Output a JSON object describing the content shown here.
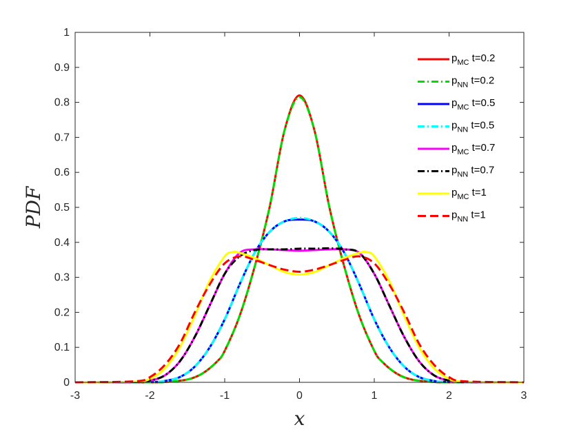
{
  "chart_data": {
    "type": "line",
    "xlabel": "x",
    "ylabel": "PDF",
    "xlim": [
      -3,
      3
    ],
    "ylim": [
      0,
      1
    ],
    "xticks": [
      "-3",
      "-2",
      "-1",
      "0",
      "1",
      "2",
      "3"
    ],
    "yticks": [
      "0",
      "0.1",
      "0.2",
      "0.3",
      "0.4",
      "0.5",
      "0.6",
      "0.7",
      "0.8",
      "0.9",
      "1"
    ],
    "grid": false,
    "legend_position": "top-right",
    "series": [
      {
        "name_main": "p",
        "name_sub": "MC",
        "name_tail": " t=0.2",
        "color": "#ff0000",
        "style": "solid",
        "x": [
          -3,
          -2,
          -1.8,
          -1.5,
          -1.3,
          -1.1,
          -1,
          -0.8,
          -0.6,
          -0.4,
          -0.2,
          0,
          0.2,
          0.4,
          0.6,
          0.8,
          1,
          1.1,
          1.3,
          1.5,
          1.8,
          2,
          3
        ],
        "y": [
          0,
          0,
          0.001,
          0.008,
          0.025,
          0.06,
          0.09,
          0.19,
          0.33,
          0.5,
          0.72,
          0.82,
          0.72,
          0.5,
          0.33,
          0.19,
          0.09,
          0.06,
          0.025,
          0.008,
          0.001,
          0,
          0
        ]
      },
      {
        "name_main": "p",
        "name_sub": "NN",
        "name_tail": " t=0.2",
        "color": "#00dd00",
        "style": "dashdot",
        "x": [
          -3,
          -2,
          -1.8,
          -1.5,
          -1.3,
          -1.1,
          -1,
          -0.8,
          -0.6,
          -0.4,
          -0.2,
          0,
          0.2,
          0.4,
          0.6,
          0.8,
          1,
          1.1,
          1.3,
          1.5,
          1.8,
          2,
          3
        ],
        "y": [
          0,
          0,
          0.001,
          0.008,
          0.025,
          0.06,
          0.09,
          0.19,
          0.33,
          0.5,
          0.72,
          0.815,
          0.72,
          0.5,
          0.33,
          0.19,
          0.09,
          0.06,
          0.025,
          0.008,
          0.001,
          0,
          0
        ]
      },
      {
        "name_main": "p",
        "name_sub": "MC",
        "name_tail": " t=0.5",
        "color": "#0000ff",
        "style": "solid",
        "x": [
          -3,
          -2,
          -1.8,
          -1.6,
          -1.4,
          -1.2,
          -1,
          -0.8,
          -0.6,
          -0.4,
          -0.2,
          0,
          0.2,
          0.4,
          0.6,
          0.8,
          1,
          1.2,
          1.4,
          1.6,
          1.8,
          2,
          3
        ],
        "y": [
          0,
          0.001,
          0.004,
          0.015,
          0.045,
          0.1,
          0.18,
          0.28,
          0.37,
          0.43,
          0.46,
          0.465,
          0.46,
          0.43,
          0.37,
          0.28,
          0.18,
          0.1,
          0.045,
          0.015,
          0.004,
          0.001,
          0
        ]
      },
      {
        "name_main": "p",
        "name_sub": "NN",
        "name_tail": " t=0.5",
        "color": "#00ffff",
        "style": "dashdot",
        "x": [
          -3,
          -2,
          -1.8,
          -1.6,
          -1.4,
          -1.2,
          -1,
          -0.8,
          -0.6,
          -0.4,
          -0.2,
          0,
          0.2,
          0.4,
          0.6,
          0.8,
          1,
          1.2,
          1.4,
          1.6,
          1.8,
          2,
          3
        ],
        "y": [
          0,
          0.001,
          0.004,
          0.015,
          0.045,
          0.1,
          0.18,
          0.28,
          0.37,
          0.43,
          0.46,
          0.47,
          0.46,
          0.43,
          0.37,
          0.28,
          0.18,
          0.1,
          0.045,
          0.015,
          0.004,
          0.001,
          0
        ]
      },
      {
        "name_main": "p",
        "name_sub": "MC",
        "name_tail": " t=0.7",
        "color": "#ff00ff",
        "style": "solid",
        "x": [
          -3,
          -2.2,
          -2,
          -1.8,
          -1.6,
          -1.4,
          -1.2,
          -1,
          -0.8,
          -0.6,
          -0.4,
          -0.2,
          0,
          0.2,
          0.4,
          0.6,
          0.8,
          1,
          1.2,
          1.4,
          1.6,
          1.8,
          2,
          2.2,
          3
        ],
        "y": [
          0,
          0.001,
          0.005,
          0.02,
          0.06,
          0.13,
          0.22,
          0.31,
          0.37,
          0.38,
          0.38,
          0.378,
          0.376,
          0.378,
          0.38,
          0.38,
          0.37,
          0.31,
          0.22,
          0.13,
          0.06,
          0.02,
          0.005,
          0.001,
          0
        ]
      },
      {
        "name_main": "p",
        "name_sub": "NN",
        "name_tail": " t=0.7",
        "color": "#000000",
        "style": "dashdot",
        "x": [
          -3,
          -2.2,
          -2,
          -1.8,
          -1.6,
          -1.4,
          -1.2,
          -1,
          -0.8,
          -0.6,
          -0.4,
          -0.2,
          0,
          0.2,
          0.4,
          0.6,
          0.8,
          1,
          1.2,
          1.4,
          1.6,
          1.8,
          2,
          2.2,
          3
        ],
        "y": [
          0,
          0.001,
          0.005,
          0.02,
          0.06,
          0.13,
          0.22,
          0.31,
          0.36,
          0.378,
          0.38,
          0.38,
          0.382,
          0.382,
          0.383,
          0.38,
          0.37,
          0.31,
          0.22,
          0.13,
          0.06,
          0.02,
          0.005,
          0.001,
          0
        ]
      },
      {
        "name_main": "p",
        "name_sub": "MC",
        "name_tail": " t=1",
        "color": "#ffff00",
        "style": "solid",
        "x": [
          -3,
          -2.2,
          -2,
          -1.8,
          -1.6,
          -1.4,
          -1.2,
          -1,
          -0.9,
          -0.8,
          -0.6,
          -0.4,
          -0.2,
          0,
          0.2,
          0.4,
          0.6,
          0.8,
          0.9,
          1,
          1.2,
          1.4,
          1.6,
          1.8,
          2,
          2.2,
          3
        ],
        "y": [
          0,
          0.002,
          0.01,
          0.04,
          0.1,
          0.19,
          0.29,
          0.36,
          0.372,
          0.37,
          0.355,
          0.335,
          0.315,
          0.308,
          0.315,
          0.335,
          0.355,
          0.37,
          0.372,
          0.36,
          0.29,
          0.19,
          0.1,
          0.04,
          0.01,
          0.002,
          0
        ]
      },
      {
        "name_main": "p",
        "name_sub": "NN",
        "name_tail": " t=1",
        "color": "#ff0000",
        "style": "dashed",
        "x": [
          -3,
          -2.2,
          -2,
          -1.8,
          -1.6,
          -1.4,
          -1.2,
          -1,
          -0.8,
          -0.6,
          -0.4,
          -0.2,
          0,
          0.2,
          0.4,
          0.6,
          0.8,
          1,
          1.2,
          1.4,
          1.6,
          1.8,
          2,
          2.2,
          3
        ],
        "y": [
          0,
          0.003,
          0.015,
          0.05,
          0.11,
          0.2,
          0.28,
          0.34,
          0.36,
          0.35,
          0.335,
          0.322,
          0.316,
          0.322,
          0.335,
          0.35,
          0.36,
          0.34,
          0.28,
          0.2,
          0.11,
          0.05,
          0.015,
          0.003,
          0
        ]
      }
    ]
  }
}
